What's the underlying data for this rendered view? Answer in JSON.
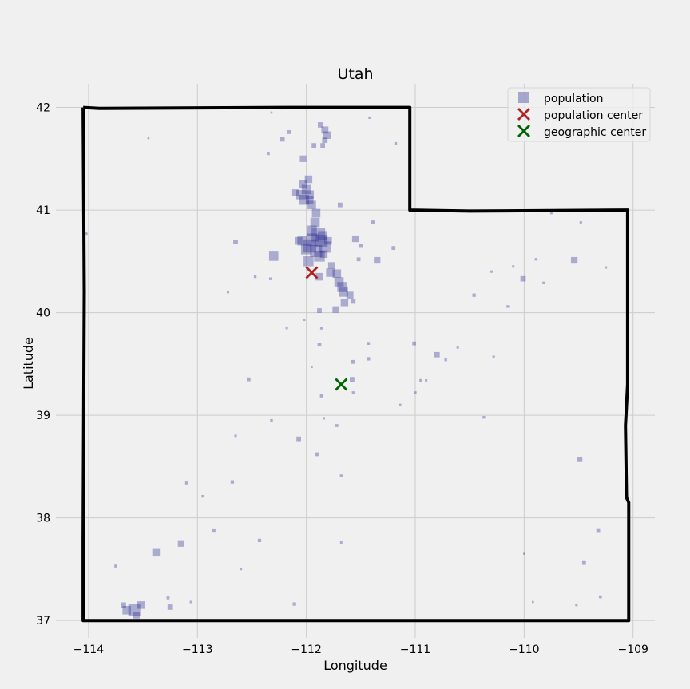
{
  "chart_data": {
    "type": "scatter",
    "title": "Utah",
    "xlabel": "Longitude",
    "ylabel": "Latitude",
    "xlim": [
      -114.3,
      -108.8
    ],
    "ylim": [
      36.83,
      42.23
    ],
    "xticks": [
      -114,
      -113,
      -112,
      -111,
      -110,
      -109
    ],
    "yticks": [
      37,
      38,
      39,
      40,
      41,
      42
    ],
    "xtick_labels": [
      "−114",
      "−113",
      "−112",
      "−111",
      "−110",
      "−109"
    ],
    "ytick_labels": [
      "37",
      "38",
      "39",
      "40",
      "41",
      "42"
    ],
    "grid": true,
    "legend_position": "top-right",
    "legend": [
      "population",
      "population center",
      "geographic center"
    ],
    "colors": {
      "population": "#1e1e8c",
      "population_center": "#b22222",
      "geographic_center": "#006400",
      "border": "#000000",
      "grid": "#cccccc",
      "background": "#f0f0f0"
    },
    "border": [
      [
        -114.05,
        42.0
      ],
      [
        -113.9,
        41.99
      ],
      [
        -112.2,
        42.0
      ],
      [
        -111.05,
        42.0
      ],
      [
        -111.05,
        41.0
      ],
      [
        -110.5,
        40.99
      ],
      [
        -109.05,
        41.0
      ],
      [
        -109.05,
        39.3
      ],
      [
        -109.07,
        38.9
      ],
      [
        -109.06,
        38.2
      ],
      [
        -109.04,
        38.15
      ],
      [
        -109.04,
        37.0
      ],
      [
        -110.5,
        37.0
      ],
      [
        -114.05,
        37.0
      ],
      [
        -114.05,
        37.8
      ],
      [
        -114.04,
        40.2
      ],
      [
        -114.05,
        42.0
      ]
    ],
    "population_center": [
      -111.95,
      40.39
    ],
    "geographic_center": [
      -111.68,
      39.3
    ],
    "population_points": [
      [
        -111.89,
        40.76,
        130
      ],
      [
        -111.94,
        40.71,
        110
      ],
      [
        -111.97,
        40.65,
        120
      ],
      [
        -111.86,
        40.7,
        100
      ],
      [
        -111.91,
        40.6,
        100
      ],
      [
        -111.83,
        40.64,
        90
      ],
      [
        -111.95,
        40.8,
        70
      ],
      [
        -112.0,
        40.62,
        80
      ],
      [
        -111.88,
        40.55,
        80
      ],
      [
        -111.98,
        40.5,
        70
      ],
      [
        -112.04,
        40.7,
        60
      ],
      [
        -111.85,
        40.75,
        60
      ],
      [
        -111.92,
        40.88,
        60
      ],
      [
        -111.91,
        40.97,
        50
      ],
      [
        -111.95,
        41.05,
        50
      ],
      [
        -112.02,
        41.1,
        70
      ],
      [
        -112.0,
        41.2,
        60
      ],
      [
        -111.97,
        41.15,
        50
      ],
      [
        -112.05,
        41.15,
        60
      ],
      [
        -112.03,
        41.25,
        50
      ],
      [
        -111.98,
        41.3,
        40
      ],
      [
        -111.97,
        41.1,
        40
      ],
      [
        -112.1,
        41.17,
        30
      ],
      [
        -112.03,
        41.5,
        30
      ],
      [
        -111.81,
        41.73,
        40
      ],
      [
        -111.83,
        41.78,
        35
      ],
      [
        -111.87,
        41.83,
        20
      ],
      [
        -111.83,
        41.68,
        20
      ],
      [
        -111.85,
        41.63,
        15
      ],
      [
        -111.93,
        41.63,
        15
      ],
      [
        -112.22,
        41.69,
        15
      ],
      [
        -112.16,
        41.76,
        10
      ],
      [
        -111.67,
        40.25,
        70
      ],
      [
        -111.7,
        40.3,
        60
      ],
      [
        -111.66,
        40.2,
        60
      ],
      [
        -111.78,
        40.39,
        50
      ],
      [
        -111.72,
        40.38,
        50
      ],
      [
        -111.65,
        40.1,
        40
      ],
      [
        -111.6,
        40.17,
        35
      ],
      [
        -111.77,
        40.46,
        30
      ],
      [
        -111.88,
        40.35,
        40
      ],
      [
        -111.73,
        40.03,
        30
      ],
      [
        -111.88,
        40.02,
        15
      ],
      [
        -111.57,
        40.11,
        15
      ],
      [
        -112.3,
        40.55,
        60
      ],
      [
        -111.55,
        40.72,
        30
      ],
      [
        -111.35,
        40.51,
        30
      ],
      [
        -111.5,
        40.65,
        10
      ],
      [
        -111.52,
        40.52,
        10
      ],
      [
        -111.2,
        40.63,
        10
      ],
      [
        -111.39,
        40.88,
        10
      ],
      [
        -111.69,
        41.05,
        15
      ],
      [
        -112.07,
        40.7,
        40
      ],
      [
        -111.8,
        40.7,
        40
      ],
      [
        -111.84,
        40.57,
        40
      ],
      [
        -109.54,
        40.51,
        30
      ],
      [
        -110.01,
        40.33,
        20
      ],
      [
        -110.46,
        40.17,
        8
      ],
      [
        -110.15,
        40.06,
        5
      ],
      [
        -110.8,
        39.59,
        20
      ],
      [
        -111.01,
        39.7,
        10
      ],
      [
        -110.72,
        39.54,
        5
      ],
      [
        -111.58,
        39.35,
        15
      ],
      [
        -111.57,
        39.52,
        10
      ],
      [
        -111.43,
        39.55,
        8
      ],
      [
        -111.43,
        39.7,
        6
      ],
      [
        -111.88,
        39.69,
        10
      ],
      [
        -111.86,
        39.85,
        6
      ],
      [
        -111.86,
        39.19,
        8
      ],
      [
        -111.72,
        38.9,
        6
      ],
      [
        -111.57,
        39.22,
        5
      ],
      [
        -112.53,
        39.35,
        10
      ],
      [
        -112.65,
        40.69,
        15
      ],
      [
        -112.07,
        38.77,
        15
      ],
      [
        -111.9,
        38.62,
        10
      ],
      [
        -109.49,
        38.57,
        20
      ],
      [
        -109.32,
        37.88,
        10
      ],
      [
        -109.45,
        37.56,
        10
      ],
      [
        -109.3,
        37.23,
        6
      ],
      [
        -113.58,
        37.1,
        100
      ],
      [
        -113.65,
        37.1,
        50
      ],
      [
        -113.52,
        37.15,
        40
      ],
      [
        -113.68,
        37.15,
        20
      ],
      [
        -113.56,
        37.05,
        30
      ],
      [
        -113.38,
        37.66,
        40
      ],
      [
        -113.15,
        37.75,
        30
      ],
      [
        -113.25,
        37.13,
        20
      ],
      [
        -112.85,
        37.88,
        8
      ],
      [
        -112.68,
        38.35,
        8
      ],
      [
        -113.1,
        38.34,
        6
      ],
      [
        -112.43,
        37.78,
        8
      ],
      [
        -112.11,
        37.16,
        8
      ],
      [
        -113.75,
        37.53,
        6
      ],
      [
        -113.27,
        37.22,
        6
      ],
      [
        -112.95,
        38.21,
        5
      ],
      [
        -112.32,
        38.95,
        5
      ],
      [
        -111.68,
        38.41,
        5
      ],
      [
        -111.0,
        39.22,
        5
      ],
      [
        -111.14,
        39.1,
        5
      ],
      [
        -110.95,
        39.34,
        5
      ],
      [
        -110.9,
        39.34,
        4
      ],
      [
        -110.37,
        38.98,
        5
      ],
      [
        -110.28,
        39.57,
        4
      ],
      [
        -109.82,
        40.29,
        5
      ],
      [
        -109.89,
        40.52,
        5
      ],
      [
        -110.3,
        40.4,
        4
      ],
      [
        -110.1,
        40.45,
        4
      ],
      [
        -112.35,
        41.55,
        6
      ],
      [
        -112.47,
        40.35,
        5
      ],
      [
        -112.33,
        40.33,
        5
      ],
      [
        -112.6,
        37.5,
        3
      ],
      [
        -114.02,
        40.77,
        4
      ],
      [
        -112.32,
        41.95,
        3
      ],
      [
        -113.45,
        41.7,
        3
      ],
      [
        -111.42,
        41.9,
        4
      ],
      [
        -111.18,
        41.65,
        5
      ],
      [
        -109.48,
        40.88,
        4
      ],
      [
        -109.75,
        40.97,
        4
      ],
      [
        -109.25,
        40.44,
        4
      ],
      [
        -110.61,
        39.66,
        4
      ],
      [
        -111.84,
        38.97,
        4
      ],
      [
        -112.65,
        38.8,
        4
      ],
      [
        -111.68,
        37.76,
        4
      ],
      [
        -110.0,
        37.65,
        3
      ],
      [
        -109.92,
        37.18,
        3
      ],
      [
        -109.52,
        37.15,
        4
      ],
      [
        -113.06,
        37.18,
        4
      ],
      [
        -112.72,
        40.2,
        4
      ],
      [
        -112.18,
        39.85,
        4
      ],
      [
        -112.02,
        39.93,
        4
      ],
      [
        -111.95,
        39.47,
        3
      ]
    ]
  }
}
